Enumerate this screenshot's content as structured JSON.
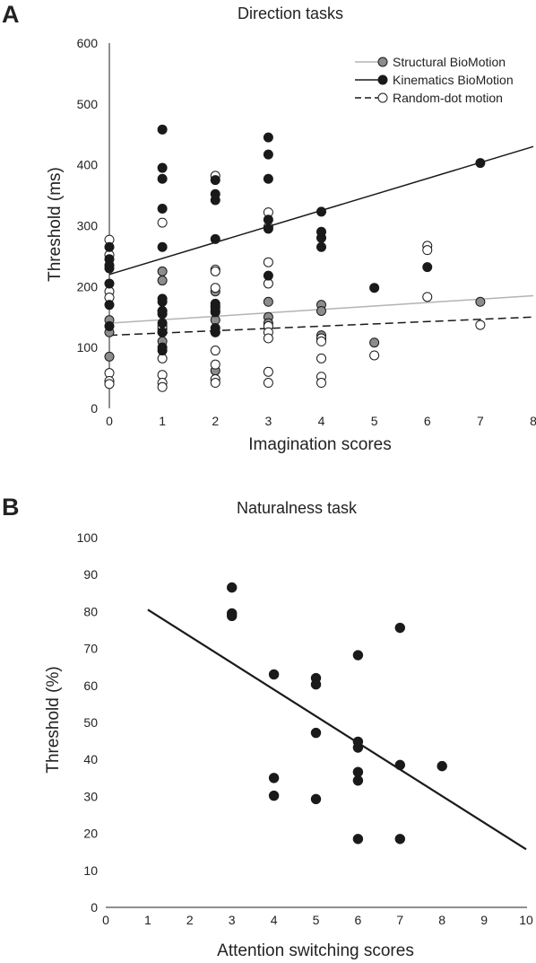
{
  "panels": {
    "a": {
      "letter": "A"
    },
    "b": {
      "letter": "B"
    }
  },
  "chart_data": [
    {
      "type": "scatter",
      "title": "Direction tasks",
      "xlabel": "Imagination scores",
      "ylabel": "Threshold (ms)",
      "xlim": [
        0,
        8
      ],
      "ylim": [
        0,
        600
      ],
      "xticks": [
        "0",
        "1",
        "2",
        "3",
        "4",
        "5",
        "6",
        "7",
        "8"
      ],
      "yticks": [
        "0",
        "100",
        "200",
        "300",
        "400",
        "500",
        "600"
      ],
      "legend_position": "top-right",
      "grid": false,
      "series": [
        {
          "name": "Structural BioMotion",
          "marker": "filled-gray",
          "color": "#8c8c8c",
          "points": [
            [
              0,
              85
            ],
            [
              0,
              125
            ],
            [
              0,
              145
            ],
            [
              1,
              210
            ],
            [
              1,
              225
            ],
            [
              1,
              130
            ],
            [
              1,
              125
            ],
            [
              1,
              110
            ],
            [
              2,
              192
            ],
            [
              2,
              160
            ],
            [
              2,
              145
            ],
            [
              2,
              125
            ],
            [
              2,
              62
            ],
            [
              3,
              175
            ],
            [
              3,
              150
            ],
            [
              3,
              140
            ],
            [
              4,
              170
            ],
            [
              4,
              160
            ],
            [
              4,
              120
            ],
            [
              4,
              115
            ],
            [
              5,
              108
            ],
            [
              7,
              175
            ]
          ],
          "fit": {
            "from": [
              0,
              140
            ],
            "to": [
              8,
              185
            ],
            "style": "solid",
            "color": "#b3b3b3"
          }
        },
        {
          "name": "Kinematics BioMotion",
          "marker": "filled-black",
          "color": "#1a1a1a",
          "points": [
            [
              0,
              265
            ],
            [
              0,
              245
            ],
            [
              0,
              235
            ],
            [
              0,
              230
            ],
            [
              0,
              205
            ],
            [
              0,
              170
            ],
            [
              0,
              135
            ],
            [
              1,
              458
            ],
            [
              1,
              395
            ],
            [
              1,
              377
            ],
            [
              1,
              328
            ],
            [
              1,
              265
            ],
            [
              1,
              180
            ],
            [
              1,
              175
            ],
            [
              1,
              160
            ],
            [
              1,
              155
            ],
            [
              1,
              140
            ],
            [
              1,
              125
            ],
            [
              1,
              100
            ],
            [
              1,
              95
            ],
            [
              2,
              375
            ],
            [
              2,
              352
            ],
            [
              2,
              342
            ],
            [
              2,
              278
            ],
            [
              2,
              172
            ],
            [
              2,
              165
            ],
            [
              2,
              158
            ],
            [
              2,
              132
            ],
            [
              2,
              125
            ],
            [
              3,
              445
            ],
            [
              3,
              417
            ],
            [
              3,
              377
            ],
            [
              3,
              310
            ],
            [
              3,
              295
            ],
            [
              3,
              218
            ],
            [
              4,
              323
            ],
            [
              4,
              290
            ],
            [
              4,
              280
            ],
            [
              4,
              265
            ],
            [
              5,
              198
            ],
            [
              6,
              232
            ],
            [
              7,
              403
            ]
          ],
          "fit": {
            "from": [
              0,
              220
            ],
            "to": [
              8,
              430
            ],
            "style": "solid",
            "color": "#1a1a1a"
          }
        },
        {
          "name": "Random-dot motion",
          "marker": "open",
          "color": "#1a1a1a",
          "points": [
            [
              0,
              277
            ],
            [
              0,
              252
            ],
            [
              0,
              192
            ],
            [
              0,
              182
            ],
            [
              0,
              58
            ],
            [
              0,
              45
            ],
            [
              0,
              40
            ],
            [
              1,
              305
            ],
            [
              1,
              160
            ],
            [
              1,
              135
            ],
            [
              1,
              82
            ],
            [
              1,
              55
            ],
            [
              1,
              42
            ],
            [
              1,
              35
            ],
            [
              2,
              382
            ],
            [
              2,
              228
            ],
            [
              2,
              225
            ],
            [
              2,
              198
            ],
            [
              2,
              168
            ],
            [
              2,
              95
            ],
            [
              2,
              72
            ],
            [
              2,
              48
            ],
            [
              2,
              42
            ],
            [
              3,
              322
            ],
            [
              3,
              298
            ],
            [
              3,
              240
            ],
            [
              3,
              205
            ],
            [
              3,
              135
            ],
            [
              3,
              125
            ],
            [
              3,
              115
            ],
            [
              3,
              60
            ],
            [
              3,
              42
            ],
            [
              4,
              115
            ],
            [
              4,
              110
            ],
            [
              4,
              82
            ],
            [
              4,
              52
            ],
            [
              4,
              42
            ],
            [
              5,
              87
            ],
            [
              6,
              267
            ],
            [
              6,
              260
            ],
            [
              6,
              183
            ],
            [
              7,
              137
            ]
          ],
          "fit": {
            "from": [
              0,
              120
            ],
            "to": [
              8,
              150
            ],
            "style": "dashed",
            "color": "#1a1a1a"
          }
        }
      ]
    },
    {
      "type": "scatter",
      "title": "Naturalness task",
      "xlabel": "Attention switching scores",
      "ylabel": "Threshold (%)",
      "xlim": [
        0,
        10
      ],
      "ylim": [
        0,
        100
      ],
      "xticks": [
        "0",
        "1",
        "2",
        "3",
        "4",
        "5",
        "6",
        "7",
        "8",
        "9",
        "10"
      ],
      "yticks": [
        "0",
        "10",
        "20",
        "30",
        "40",
        "50",
        "60",
        "70",
        "80",
        "90",
        "100"
      ],
      "grid": false,
      "series": [
        {
          "marker": "filled-black",
          "color": "#1a1a1a",
          "points": [
            [
              3,
              86.5
            ],
            [
              3,
              79.5
            ],
            [
              3,
              78.8
            ],
            [
              4,
              63
            ],
            [
              4,
              35
            ],
            [
              4,
              30.2
            ],
            [
              5,
              62
            ],
            [
              5,
              60.3
            ],
            [
              5,
              47.2
            ],
            [
              5,
              29.3
            ],
            [
              6,
              68.2
            ],
            [
              6,
              44.8
            ],
            [
              6,
              43.2
            ],
            [
              6,
              36.6
            ],
            [
              6,
              34.3
            ],
            [
              6,
              18.5
            ],
            [
              7,
              75.6
            ],
            [
              7,
              38.5
            ],
            [
              7,
              18.5
            ],
            [
              8,
              38.2
            ]
          ],
          "fit": {
            "from": [
              1,
              80.5
            ],
            "to": [
              10,
              15.7
            ],
            "style": "solid",
            "color": "#1a1a1a"
          }
        }
      ]
    }
  ]
}
